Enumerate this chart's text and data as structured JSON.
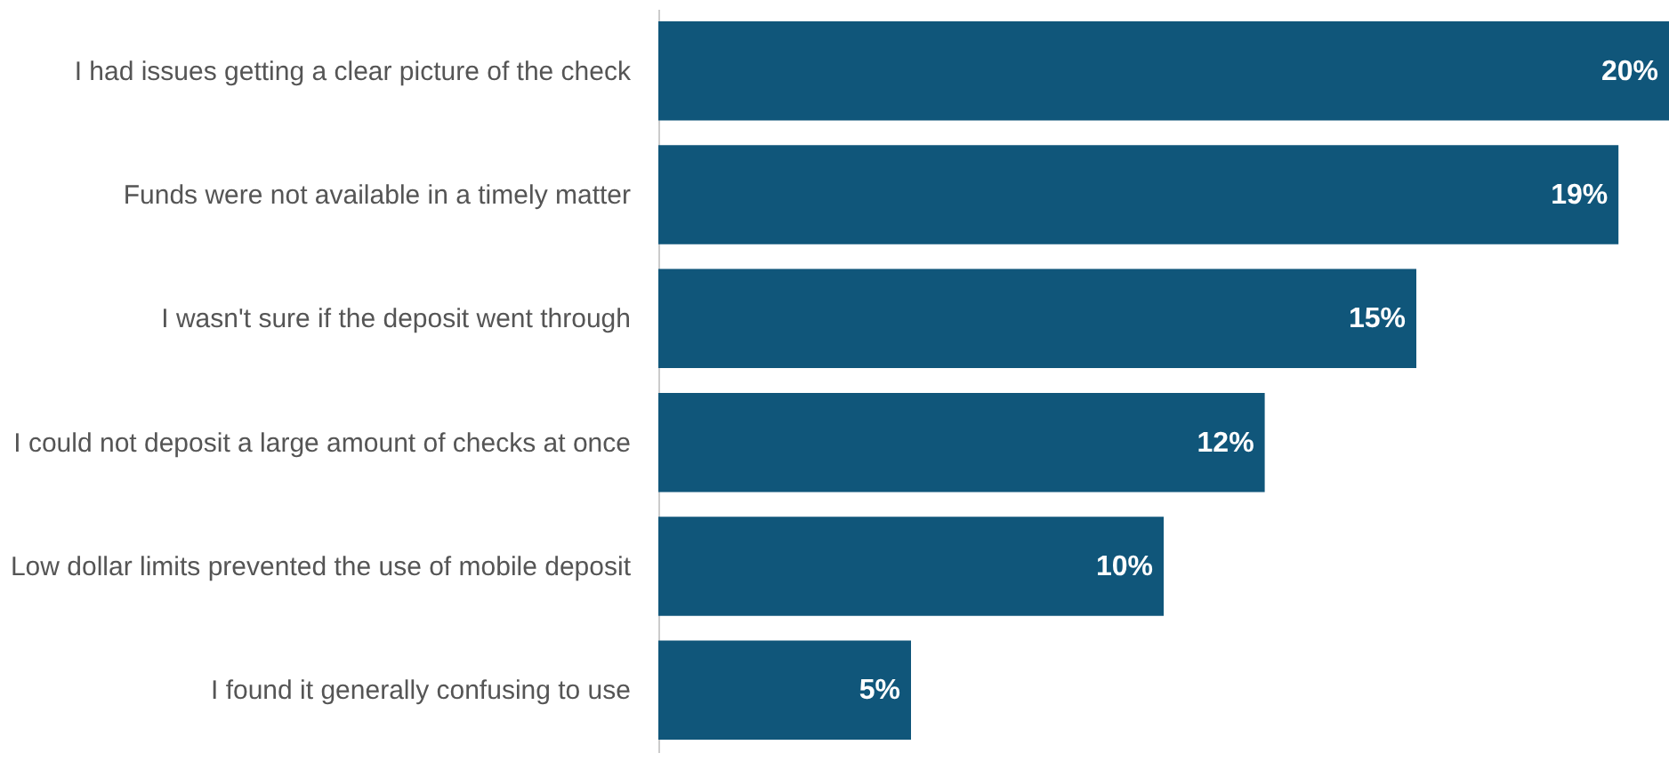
{
  "chart_data": {
    "type": "bar",
    "orientation": "horizontal",
    "categories": [
      "I had issues getting a clear picture of the check",
      "Funds were not available in a timely matter",
      "I wasn't sure if the deposit went through",
      "I could not deposit a large amount of checks at once",
      "Low dollar limits prevented the use of mobile deposit",
      "I found it generally confusing to use"
    ],
    "values": [
      20,
      19,
      15,
      12,
      10,
      5
    ],
    "value_labels": [
      "20%",
      "19%",
      "15%",
      "12%",
      "10%",
      "5%"
    ],
    "color": "#10567a"
  }
}
